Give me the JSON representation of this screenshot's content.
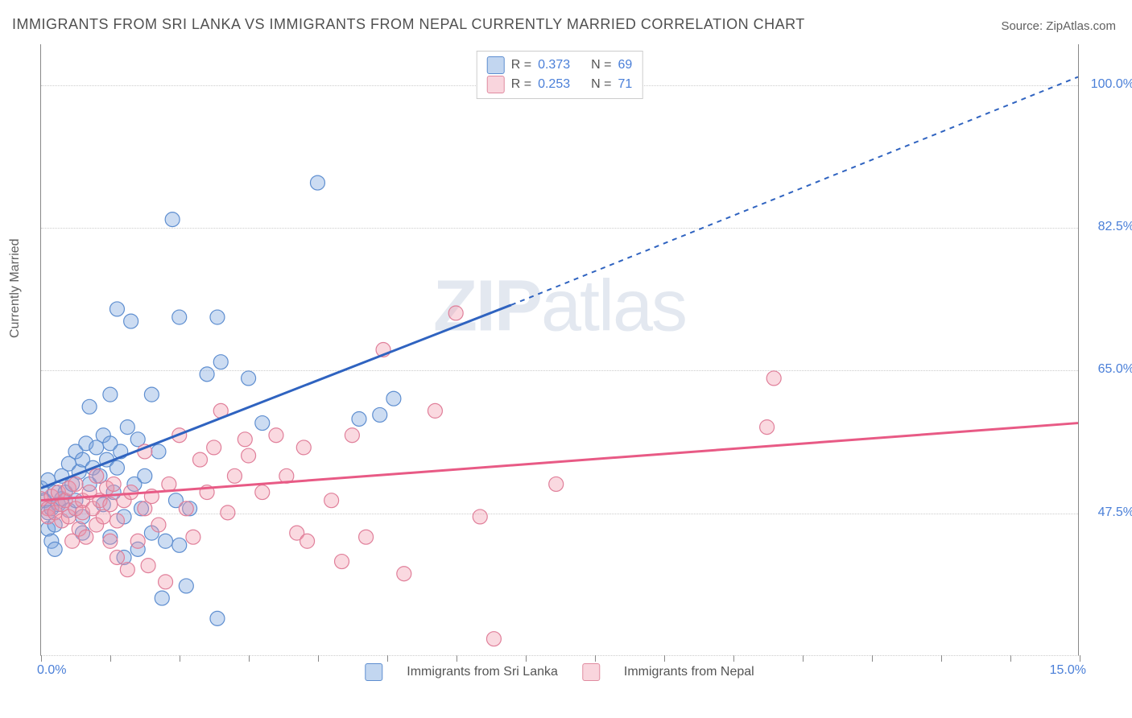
{
  "title": "IMMIGRANTS FROM SRI LANKA VS IMMIGRANTS FROM NEPAL CURRENTLY MARRIED CORRELATION CHART",
  "source": "Source: ZipAtlas.com",
  "y_axis_label": "Currently Married",
  "watermark_bold": "ZIP",
  "watermark_rest": "atlas",
  "chart": {
    "type": "scatter-correlation",
    "xlim": [
      0.0,
      15.0
    ],
    "ylim": [
      30.0,
      105.0
    ],
    "x_ticks_minor": [
      0,
      1,
      2,
      3,
      4,
      5,
      6,
      7,
      8,
      9,
      10,
      11,
      12,
      13,
      14,
      15
    ],
    "y_gridlines": [
      47.5,
      65.0,
      82.5,
      100.0
    ],
    "x_tick_labels": {
      "left": "0.0%",
      "right": "15.0%"
    },
    "background": "#ffffff",
    "grid_color": "#cccccc",
    "grid_style": "dotted",
    "axis_color": "#888888",
    "tick_label_color": "#4a7fd8",
    "axis_label_color": "#606060",
    "marker_radius": 9,
    "marker_opacity": 0.38,
    "line_width": 3
  },
  "series": [
    {
      "key": "sri_lanka",
      "label": "Immigrants from Sri Lanka",
      "color": "#5e8ed0",
      "fill": "rgba(120,163,221,0.38)",
      "R": "0.373",
      "N": "69",
      "trend": {
        "x1": 0.0,
        "y1": 50.5,
        "x2": 6.8,
        "y2": 73.0,
        "dash_x2": 15.0,
        "dash_y2": 101.0,
        "color": "#2f63c0"
      },
      "points": [
        [
          0.0,
          50.5
        ],
        [
          0.05,
          49.0
        ],
        [
          0.1,
          47.5
        ],
        [
          0.1,
          45.5
        ],
        [
          0.1,
          51.5
        ],
        [
          0.15,
          48.0
        ],
        [
          0.15,
          44.0
        ],
        [
          0.2,
          50.0
        ],
        [
          0.2,
          46.0
        ],
        [
          0.2,
          43.0
        ],
        [
          0.25,
          48.5
        ],
        [
          0.3,
          49.2
        ],
        [
          0.3,
          52.0
        ],
        [
          0.35,
          50.0
        ],
        [
          0.4,
          53.5
        ],
        [
          0.4,
          47.8
        ],
        [
          0.45,
          51.0
        ],
        [
          0.5,
          55.0
        ],
        [
          0.5,
          49.0
        ],
        [
          0.55,
          52.5
        ],
        [
          0.6,
          54.0
        ],
        [
          0.6,
          47.0
        ],
        [
          0.6,
          45.0
        ],
        [
          0.65,
          56.0
        ],
        [
          0.7,
          60.5
        ],
        [
          0.7,
          51.0
        ],
        [
          0.75,
          53.0
        ],
        [
          0.8,
          55.5
        ],
        [
          0.85,
          52.0
        ],
        [
          0.9,
          57.0
        ],
        [
          0.9,
          48.5
        ],
        [
          0.95,
          54.0
        ],
        [
          1.0,
          56.0
        ],
        [
          1.0,
          44.5
        ],
        [
          1.0,
          62.0
        ],
        [
          1.05,
          50.0
        ],
        [
          1.1,
          72.5
        ],
        [
          1.1,
          53.0
        ],
        [
          1.15,
          55.0
        ],
        [
          1.2,
          42.0
        ],
        [
          1.2,
          47.0
        ],
        [
          1.25,
          58.0
        ],
        [
          1.3,
          71.0
        ],
        [
          1.35,
          51.0
        ],
        [
          1.4,
          56.5
        ],
        [
          1.4,
          43.0
        ],
        [
          1.45,
          48.0
        ],
        [
          1.5,
          52.0
        ],
        [
          1.6,
          62.0
        ],
        [
          1.6,
          45.0
        ],
        [
          1.7,
          55.0
        ],
        [
          1.75,
          37.0
        ],
        [
          1.8,
          44.0
        ],
        [
          1.9,
          83.5
        ],
        [
          1.95,
          49.0
        ],
        [
          2.0,
          43.5
        ],
        [
          2.0,
          71.5
        ],
        [
          2.1,
          38.5
        ],
        [
          2.15,
          48.0
        ],
        [
          2.4,
          64.5
        ],
        [
          2.55,
          34.5
        ],
        [
          2.55,
          71.5
        ],
        [
          2.6,
          66.0
        ],
        [
          3.0,
          64.0
        ],
        [
          3.2,
          58.5
        ],
        [
          4.0,
          88.0
        ],
        [
          4.6,
          59.0
        ],
        [
          4.9,
          59.5
        ],
        [
          5.1,
          61.5
        ]
      ]
    },
    {
      "key": "nepal",
      "label": "Immigrants from Nepal",
      "color": "#e07f9a",
      "fill": "rgba(240,150,170,0.36)",
      "R": "0.253",
      "N": "71",
      "trend": {
        "x1": 0.0,
        "y1": 49.0,
        "x2": 15.0,
        "y2": 58.5,
        "color": "#e85a85"
      },
      "points": [
        [
          0.0,
          49.2
        ],
        [
          0.1,
          48.0
        ],
        [
          0.1,
          47.0
        ],
        [
          0.15,
          49.5
        ],
        [
          0.2,
          47.5
        ],
        [
          0.25,
          50.0
        ],
        [
          0.3,
          48.5
        ],
        [
          0.3,
          46.5
        ],
        [
          0.35,
          49.0
        ],
        [
          0.4,
          50.5
        ],
        [
          0.4,
          47.0
        ],
        [
          0.45,
          44.0
        ],
        [
          0.5,
          48.0
        ],
        [
          0.5,
          51.0
        ],
        [
          0.55,
          45.5
        ],
        [
          0.6,
          49.0
        ],
        [
          0.6,
          47.5
        ],
        [
          0.65,
          44.5
        ],
        [
          0.7,
          50.0
        ],
        [
          0.75,
          48.0
        ],
        [
          0.8,
          46.0
        ],
        [
          0.8,
          52.0
        ],
        [
          0.85,
          49.0
        ],
        [
          0.9,
          47.0
        ],
        [
          0.95,
          50.5
        ],
        [
          1.0,
          44.0
        ],
        [
          1.0,
          48.5
        ],
        [
          1.05,
          51.0
        ],
        [
          1.1,
          42.0
        ],
        [
          1.1,
          46.5
        ],
        [
          1.2,
          49.0
        ],
        [
          1.25,
          40.5
        ],
        [
          1.3,
          50.0
        ],
        [
          1.4,
          44.0
        ],
        [
          1.5,
          48.0
        ],
        [
          1.5,
          55.0
        ],
        [
          1.55,
          41.0
        ],
        [
          1.6,
          49.5
        ],
        [
          1.7,
          46.0
        ],
        [
          1.8,
          39.0
        ],
        [
          1.85,
          51.0
        ],
        [
          2.0,
          57.0
        ],
        [
          2.1,
          48.0
        ],
        [
          2.2,
          44.5
        ],
        [
          2.3,
          54.0
        ],
        [
          2.4,
          50.0
        ],
        [
          2.5,
          55.5
        ],
        [
          2.6,
          60.0
        ],
        [
          2.7,
          47.5
        ],
        [
          2.8,
          52.0
        ],
        [
          2.95,
          56.5
        ],
        [
          3.0,
          54.5
        ],
        [
          3.2,
          50.0
        ],
        [
          3.4,
          57.0
        ],
        [
          3.55,
          52.0
        ],
        [
          3.7,
          45.0
        ],
        [
          3.8,
          55.5
        ],
        [
          3.85,
          44.0
        ],
        [
          4.2,
          49.0
        ],
        [
          4.35,
          41.5
        ],
        [
          4.5,
          57.0
        ],
        [
          4.7,
          44.5
        ],
        [
          4.95,
          67.5
        ],
        [
          5.25,
          40.0
        ],
        [
          5.7,
          60.0
        ],
        [
          6.0,
          72.0
        ],
        [
          6.35,
          47.0
        ],
        [
          6.55,
          32.0
        ],
        [
          7.45,
          51.0
        ],
        [
          10.5,
          58.0
        ],
        [
          10.6,
          64.0
        ]
      ]
    }
  ],
  "legend_top": {
    "R_label": "R =",
    "N_label": "N ="
  }
}
